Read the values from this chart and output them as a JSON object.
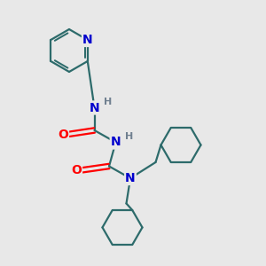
{
  "bg_color": "#e8e8e8",
  "bond_color": "#2d6b6b",
  "N_color": "#0000cd",
  "O_color": "#ff0000",
  "H_color": "#708090",
  "line_width": 1.6,
  "fig_size": [
    3.0,
    3.0
  ],
  "dpi": 100,
  "xlim": [
    0,
    10
  ],
  "ylim": [
    0,
    10
  ]
}
